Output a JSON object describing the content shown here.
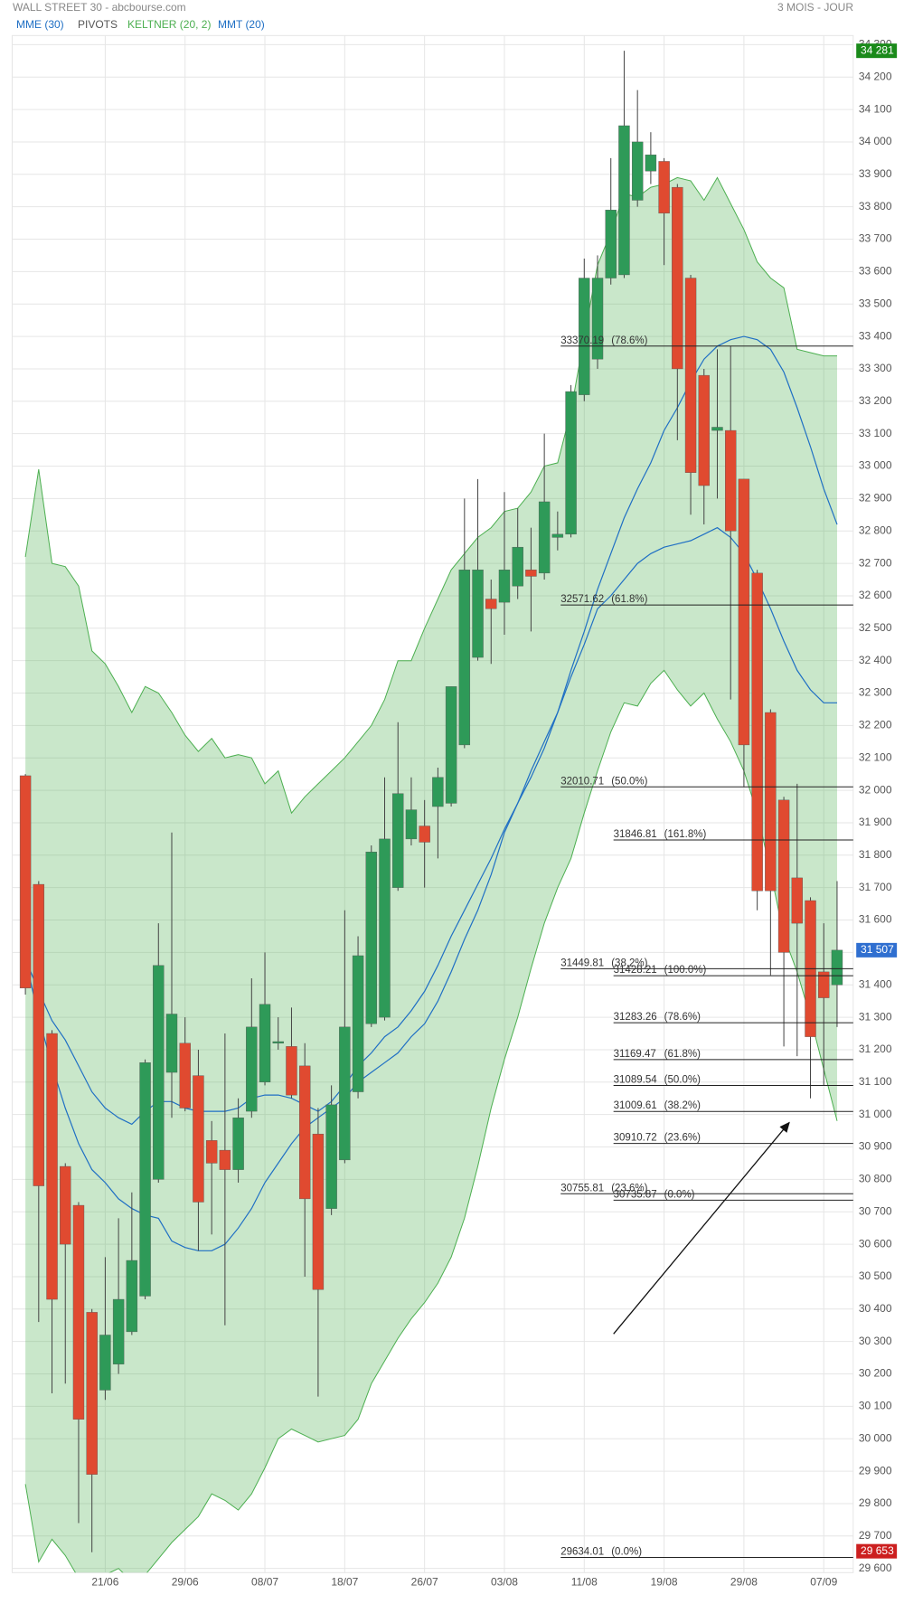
{
  "chart_data": {
    "type": "candlestick",
    "title": "WALL STREET 30 - abcbourse.com",
    "period": "3 MOIS - JOUR",
    "categories": [
      null,
      null,
      null,
      null,
      null,
      null,
      "21/06",
      null,
      null,
      null,
      null,
      null,
      "29/06",
      null,
      null,
      null,
      null,
      null,
      "08/07",
      null,
      null,
      null,
      null,
      null,
      "18/07",
      null,
      null,
      null,
      null,
      null,
      "26/07",
      null,
      null,
      null,
      null,
      null,
      "03/08",
      null,
      null,
      null,
      null,
      null,
      "11/08",
      null,
      null,
      null,
      null,
      null,
      "19/08",
      null,
      null,
      null,
      null,
      null,
      "29/08",
      null,
      null,
      null,
      null,
      null,
      "07/09",
      null
    ],
    "open": [
      32045,
      31710,
      31250,
      30840,
      30720,
      30390,
      30150,
      30230,
      30330,
      30440,
      30800,
      31130,
      31220,
      31120,
      30920,
      30890,
      30830,
      31010,
      31100,
      31220,
      31210,
      31150,
      30940,
      30710,
      30860,
      31070,
      31280,
      31300,
      31700,
      31850,
      31890,
      31950,
      31960,
      32140,
      32410,
      32590,
      32580,
      32630,
      32680,
      32670,
      32780,
      32790,
      33220,
      33330,
      33580,
      33590,
      33820,
      33910,
      33940,
      33860,
      33580,
      33280,
      33110,
      33110,
      32960,
      32670,
      32240,
      31970,
      31730,
      31660,
      31440,
      31400
    ],
    "high": [
      32050,
      31720,
      31260,
      30850,
      30730,
      30400,
      30560,
      30680,
      30760,
      31170,
      31590,
      31870,
      31300,
      31200,
      30980,
      31250,
      31050,
      31420,
      31500,
      31300,
      31330,
      31220,
      31020,
      31090,
      31630,
      31550,
      31830,
      32040,
      32210,
      32040,
      31970,
      32070,
      32320,
      32900,
      32960,
      32650,
      32920,
      32870,
      32810,
      33100,
      32860,
      33250,
      33640,
      33650,
      33950,
      34281,
      34160,
      34030,
      33950,
      33870,
      33590,
      33300,
      33360,
      33370,
      32960,
      32680,
      32250,
      31980,
      32020,
      31670,
      31590,
      31720
    ],
    "low": [
      31370,
      30360,
      30140,
      30170,
      29740,
      29650,
      30120,
      30200,
      30320,
      30430,
      30790,
      30990,
      31010,
      30580,
      30630,
      30350,
      30790,
      30990,
      31090,
      31200,
      31050,
      30500,
      30130,
      30690,
      30850,
      31050,
      31270,
      31290,
      31690,
      31830,
      31700,
      31790,
      31950,
      32130,
      32400,
      32390,
      32480,
      32590,
      32490,
      32650,
      32740,
      32780,
      33200,
      33300,
      33560,
      33580,
      33800,
      33870,
      33620,
      33080,
      32850,
      32820,
      32900,
      32280,
      32010,
      31630,
      31430,
      31210,
      31180,
      31050,
      31090,
      31270
    ],
    "close": [
      31390,
      30780,
      30430,
      30600,
      30060,
      29890,
      30320,
      30430,
      30550,
      31160,
      31460,
      31310,
      31020,
      30730,
      30850,
      30830,
      30990,
      31270,
      31340,
      31225,
      31060,
      30740,
      30460,
      31030,
      31270,
      31490,
      31810,
      31850,
      31990,
      31940,
      31840,
      32040,
      32320,
      32680,
      32680,
      32560,
      32680,
      32750,
      32660,
      32890,
      32790,
      33230,
      33580,
      33580,
      33790,
      34050,
      34000,
      33960,
      33780,
      33300,
      32980,
      32940,
      33120,
      32800,
      32140,
      31690,
      31690,
      31500,
      31590,
      31240,
      31360,
      31507
    ],
    "up_color": "#2e9a58",
    "down_color": "#e04a30",
    "overlays": [
      {
        "name": "MME (30)",
        "color": "#1f6fc4",
        "values": [
          31480,
          31300,
          31150,
          31020,
          30910,
          30830,
          30790,
          30740,
          30710,
          30690,
          30680,
          30610,
          30590,
          30580,
          30580,
          30600,
          30650,
          30710,
          30790,
          30850,
          30910,
          30960,
          30990,
          31020,
          31050,
          31100,
          31130,
          31160,
          31190,
          31240,
          31280,
          31350,
          31440,
          31540,
          31630,
          31740,
          31870,
          31960,
          32060,
          32150,
          32240,
          32350,
          32450,
          32560,
          32600,
          32650,
          32700,
          32730,
          32750,
          32760,
          32770,
          32790,
          32810,
          32780,
          32730,
          32650,
          32560,
          32460,
          32370,
          32310,
          32270,
          32270
        ]
      },
      {
        "name": "MMT (20)",
        "color": "#1f6fc4",
        "values": [
          31480,
          31380,
          31290,
          31230,
          31150,
          31070,
          31020,
          30990,
          30970,
          31010,
          31040,
          31040,
          31020,
          31010,
          31010,
          31010,
          31020,
          31050,
          31060,
          31060,
          31050,
          31030,
          31010,
          31040,
          31090,
          31150,
          31190,
          31240,
          31270,
          31320,
          31380,
          31460,
          31550,
          31630,
          31710,
          31790,
          31880,
          31960,
          32040,
          32130,
          32240,
          32370,
          32490,
          32620,
          32730,
          32840,
          32930,
          33010,
          33110,
          33180,
          33260,
          33330,
          33370,
          33390,
          33400,
          33390,
          33360,
          33290,
          33180,
          33060,
          32930,
          32820
        ]
      }
    ],
    "keltner": {
      "name": "KELTNER (20, 2)",
      "color": "#4caf50",
      "upper": [
        32720,
        32990,
        32700,
        32690,
        32630,
        32430,
        32390,
        32320,
        32240,
        32320,
        32300,
        32240,
        32170,
        32120,
        32160,
        32100,
        32110,
        32100,
        32020,
        32060,
        31930,
        31980,
        32020,
        32060,
        32100,
        32150,
        32200,
        32280,
        32400,
        32400,
        32500,
        32590,
        32680,
        32730,
        32780,
        32810,
        32860,
        32870,
        32920,
        33000,
        33010,
        33170,
        33400,
        33620,
        33720,
        33840,
        33830,
        33860,
        33870,
        33890,
        33880,
        33820,
        33890,
        33810,
        33730,
        33630,
        33580,
        33550,
        33360,
        33350,
        33340,
        33340
      ],
      "lower": [
        29860,
        29620,
        29690,
        29640,
        29570,
        29560,
        29580,
        29600,
        29560,
        29580,
        29630,
        29680,
        29720,
        29760,
        29830,
        29810,
        29780,
        29830,
        29910,
        30000,
        30030,
        30010,
        29990,
        30000,
        30010,
        30060,
        30170,
        30240,
        30310,
        30370,
        30420,
        30480,
        30560,
        30680,
        30840,
        31020,
        31170,
        31300,
        31450,
        31590,
        31700,
        31790,
        31930,
        32060,
        32180,
        32270,
        32260,
        32330,
        32370,
        32310,
        32260,
        32300,
        32220,
        32150,
        32060,
        31930,
        31750,
        31550,
        31440,
        31300,
        31140,
        30980
      ]
    },
    "pivots": {
      "name": "PIVOTS",
      "color": "#222",
      "sets": [
        [
          {
            "value": 33370.19,
            "label": "(78.6%)"
          },
          {
            "value": 32571.62,
            "label": "(61.8%)"
          },
          {
            "value": 32010.71,
            "label": "(50.0%)"
          },
          {
            "value": 31449.81,
            "label": "(38.2%)"
          },
          {
            "value": 30755.81,
            "label": "(23.6%)"
          },
          {
            "value": 29634.01,
            "label": "(0.0%)"
          }
        ],
        [
          {
            "value": 31846.81,
            "label": "(161.8%)"
          },
          {
            "value": 31428.21,
            "label": "(100.0%)"
          },
          {
            "value": 31283.26,
            "label": "(78.6%)"
          },
          {
            "value": 31169.47,
            "label": "(61.8%)"
          },
          {
            "value": 31089.54,
            "label": "(50.0%)"
          },
          {
            "value": 31009.61,
            "label": "(38.2%)"
          },
          {
            "value": 30910.72,
            "label": "(23.6%)"
          },
          {
            "value": 30735.87,
            "label": "(0.0%)"
          }
        ]
      ]
    },
    "price_labels": [
      {
        "value": 34281,
        "label": "34 281",
        "color": "#1a8a1a"
      },
      {
        "value": 31507,
        "label": "31 507",
        "color": "#2f6fd0"
      },
      {
        "value": 29653,
        "label": "29 653",
        "color": "#cc1f1f"
      }
    ],
    "ylim": [
      29587,
      34328
    ],
    "yticks": [
      {
        "value": 29600,
        "label": "29 600"
      },
      {
        "value": 29700,
        "label": "29 700"
      },
      {
        "value": 29800,
        "label": "29 800"
      },
      {
        "value": 29900,
        "label": "29 900"
      },
      {
        "value": 30000,
        "label": "30 000"
      },
      {
        "value": 30100,
        "label": "30 100"
      },
      {
        "value": 30200,
        "label": "30 200"
      },
      {
        "value": 30300,
        "label": "30 300"
      },
      {
        "value": 30400,
        "label": "30 400"
      },
      {
        "value": 30500,
        "label": "30 500"
      },
      {
        "value": 30600,
        "label": "30 600"
      },
      {
        "value": 30700,
        "label": "30 700"
      },
      {
        "value": 30800,
        "label": "30 800"
      },
      {
        "value": 30900,
        "label": "30 900"
      },
      {
        "value": 31000,
        "label": "31 000"
      },
      {
        "value": 31100,
        "label": "31 100"
      },
      {
        "value": 31200,
        "label": "31 200"
      },
      {
        "value": 31300,
        "label": "31 300"
      },
      {
        "value": 31400,
        "label": "31 400"
      },
      {
        "value": 31500,
        "label": "31 500"
      },
      {
        "value": 31600,
        "label": "31 600"
      },
      {
        "value": 31700,
        "label": "31 700"
      },
      {
        "value": 31800,
        "label": "31 800"
      },
      {
        "value": 31900,
        "label": "31 900"
      },
      {
        "value": 32000,
        "label": "32 000"
      },
      {
        "value": 32100,
        "label": "32 100"
      },
      {
        "value": 32200,
        "label": "32 200"
      },
      {
        "value": 32300,
        "label": "32 300"
      },
      {
        "value": 32400,
        "label": "32 400"
      },
      {
        "value": 32500,
        "label": "32 500"
      },
      {
        "value": 32600,
        "label": "32 600"
      },
      {
        "value": 32700,
        "label": "32 700"
      },
      {
        "value": 32800,
        "label": "32 800"
      },
      {
        "value": 32900,
        "label": "32 900"
      },
      {
        "value": 33000,
        "label": "33 000"
      },
      {
        "value": 33100,
        "label": "33 100"
      },
      {
        "value": 33200,
        "label": "33 200"
      },
      {
        "value": 33300,
        "label": "33 300"
      },
      {
        "value": 33400,
        "label": "33 400"
      },
      {
        "value": 33500,
        "label": "33 500"
      },
      {
        "value": 33600,
        "label": "33 600"
      },
      {
        "value": 33700,
        "label": "33 700"
      },
      {
        "value": 33800,
        "label": "33 800"
      },
      {
        "value": 33900,
        "label": "33 900"
      },
      {
        "value": 34000,
        "label": "34 000"
      },
      {
        "value": 34100,
        "label": "34 100"
      },
      {
        "value": 34200,
        "label": "34 200"
      },
      {
        "value": 34300,
        "label": "34 300"
      }
    ],
    "grid": true
  }
}
